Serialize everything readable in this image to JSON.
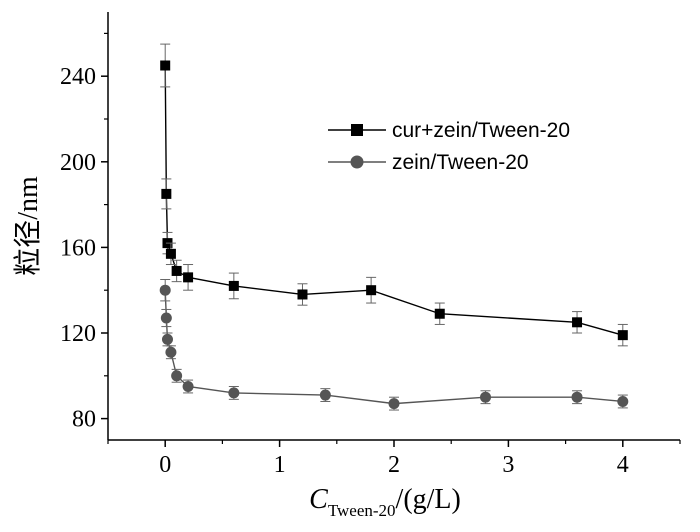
{
  "chart_data": {
    "type": "scatter",
    "ylabel": "粒径/nm",
    "xlabel": {
      "italic": "C",
      "subscript": "Tween-20",
      "suffix": "/(g/L)"
    },
    "xlim": [
      -0.5,
      4.5
    ],
    "ylim": [
      70,
      270
    ],
    "xticks": [
      "0",
      "1",
      "2",
      "3",
      "4"
    ],
    "yticks": [
      "80",
      "120",
      "160",
      "200",
      "240"
    ],
    "legend_position": "top-right",
    "series": [
      {
        "name": "cur+zein/Tween-20",
        "marker": "square",
        "color": "#000000",
        "x": [
          0,
          0.01,
          0.02,
          0.05,
          0.1,
          0.2,
          0.6,
          1.2,
          1.8,
          2.4,
          3.6,
          4.0
        ],
        "y": [
          245,
          185,
          162,
          157,
          149,
          146,
          142,
          138,
          140,
          129,
          125,
          119
        ],
        "err": [
          10,
          7,
          5,
          5,
          5,
          6,
          6,
          5,
          6,
          5,
          5,
          5
        ]
      },
      {
        "name": "zein/Tween-20",
        "marker": "circle",
        "color": "#555555",
        "x": [
          0,
          0.01,
          0.02,
          0.05,
          0.1,
          0.2,
          0.6,
          1.4,
          2.0,
          2.8,
          3.6,
          4.0
        ],
        "y": [
          140,
          127,
          117,
          111,
          100,
          95,
          92,
          91,
          87,
          90,
          90,
          88
        ],
        "err": [
          5,
          4,
          3,
          3,
          3,
          3,
          3,
          3,
          3,
          3,
          3,
          3
        ]
      }
    ]
  }
}
